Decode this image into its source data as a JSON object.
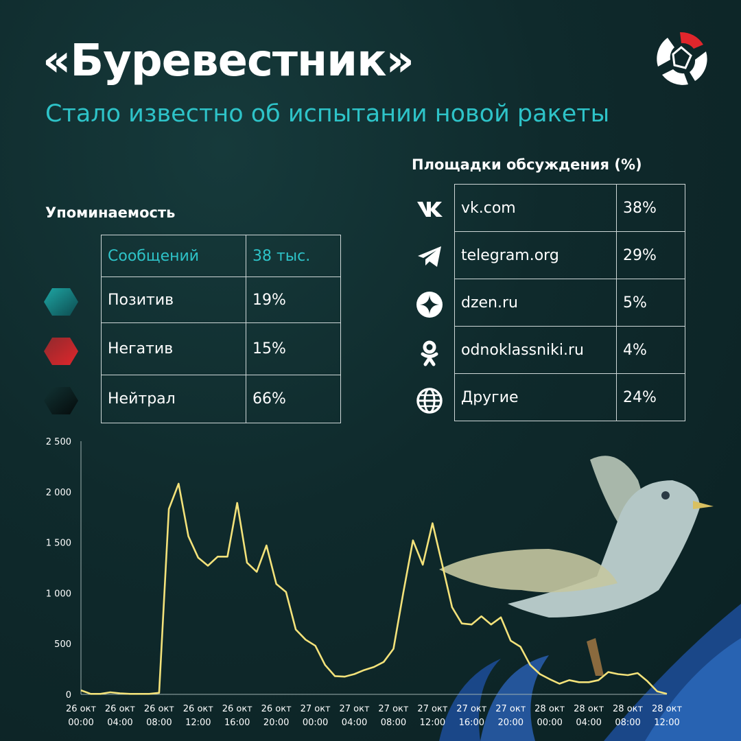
{
  "header": {
    "title": "«Буревестник»",
    "subtitle": "Стало известно об испытании новой ракеты"
  },
  "mentions": {
    "heading": "Упоминаемость",
    "rows": [
      {
        "label": "Сообщений",
        "value": "38 тыс."
      },
      {
        "label": "Позитив",
        "value": "19%",
        "color": "#1b8c8c"
      },
      {
        "label": "Негатив",
        "value": "15%",
        "color": "#c8262b"
      },
      {
        "label": "Нейтрал",
        "value": "66%",
        "color": "#0c1a1b"
      }
    ]
  },
  "platforms": {
    "heading": "Площадки обсуждения (%)",
    "rows": [
      {
        "name": "vk.com",
        "value": "38%",
        "icon": "vk-icon"
      },
      {
        "name": "telegram.org",
        "value": "29%",
        "icon": "telegram-icon"
      },
      {
        "name": "dzen.ru",
        "value": "5%",
        "icon": "dzen-icon"
      },
      {
        "name": "odnoklassniki.ru",
        "value": "4%",
        "icon": "odnoklassniki-icon"
      },
      {
        "name": "Другие",
        "value": "24%",
        "icon": "globe-icon"
      }
    ]
  },
  "colors": {
    "accent": "#2ec3c8",
    "line": "#f3e27a",
    "brand_red": "#e0262c"
  },
  "chart_data": {
    "type": "line",
    "ylim": [
      0,
      2500
    ],
    "yticks": [
      "0",
      "500",
      "1 000",
      "1 500",
      "2 000",
      "2 500"
    ],
    "ytick_values": [
      0,
      500,
      1000,
      1500,
      2000,
      2500
    ],
    "xtick_labels": [
      [
        "26 окт",
        "00:00"
      ],
      [
        "26 окт",
        "04:00"
      ],
      [
        "26 окт",
        "08:00"
      ],
      [
        "26 окт",
        "12:00"
      ],
      [
        "26 окт",
        "16:00"
      ],
      [
        "26 окт",
        "20:00"
      ],
      [
        "27 окт",
        "00:00"
      ],
      [
        "27 окт",
        "04:00"
      ],
      [
        "27 окт",
        "08:00"
      ],
      [
        "27 окт",
        "12:00"
      ],
      [
        "27 окт",
        "16:00"
      ],
      [
        "27 окт",
        "20:00"
      ],
      [
        "28 окт",
        "00:00"
      ],
      [
        "28 окт",
        "04:00"
      ],
      [
        "28 окт",
        "08:00"
      ],
      [
        "28 окт",
        "12:00"
      ]
    ],
    "x_hours": [
      0,
      1,
      2,
      3,
      4,
      5,
      6,
      7,
      8,
      9,
      10,
      11,
      12,
      13,
      14,
      15,
      16,
      17,
      18,
      19,
      20,
      21,
      22,
      23,
      24,
      25,
      26,
      27,
      28,
      29,
      30,
      31,
      32,
      33,
      34,
      35,
      36,
      37,
      38,
      39,
      40,
      41,
      42,
      43,
      44,
      45,
      46,
      47,
      48,
      49,
      50,
      51,
      52,
      53,
      54,
      55,
      56,
      57,
      58,
      59,
      60
    ],
    "values": [
      40,
      5,
      5,
      20,
      10,
      5,
      5,
      5,
      15,
      1830,
      2080,
      1560,
      1350,
      1270,
      1360,
      1360,
      1890,
      1300,
      1210,
      1470,
      1090,
      1010,
      640,
      540,
      480,
      290,
      180,
      175,
      200,
      240,
      270,
      320,
      450,
      1000,
      1520,
      1280,
      1690,
      1280,
      860,
      700,
      690,
      770,
      690,
      760,
      530,
      470,
      290,
      200,
      150,
      105,
      140,
      120,
      120,
      140,
      220,
      200,
      190,
      210,
      130,
      30,
      5
    ]
  }
}
